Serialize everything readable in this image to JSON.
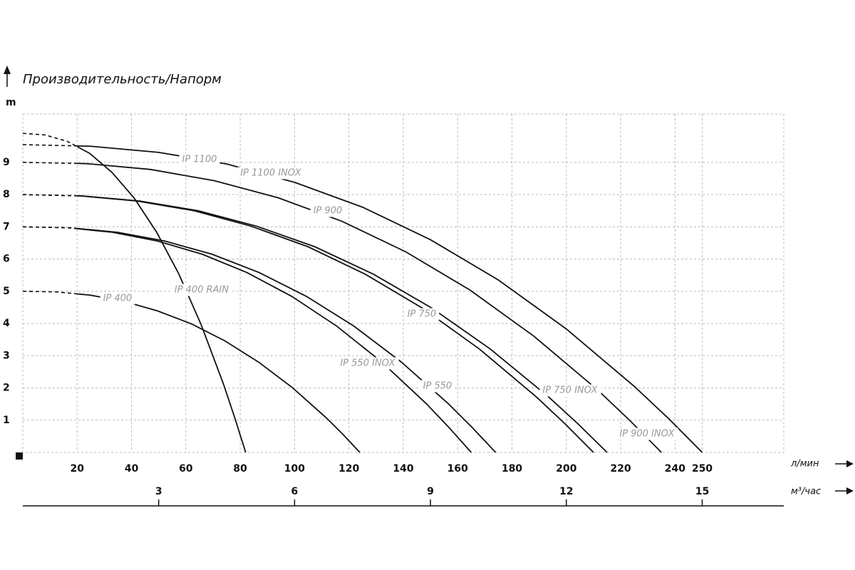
{
  "chart_data": {
    "type": "line",
    "title": "Производительность/Напорм",
    "y_label": "m",
    "x_label": "л/мин",
    "x2_label": "м³/час",
    "xlim": [
      0,
      280
    ],
    "ylim": [
      0,
      10.5
    ],
    "x2lim": [
      0,
      16.8
    ],
    "xticks": [
      20,
      40,
      60,
      80,
      100,
      120,
      140,
      160,
      180,
      200,
      220,
      240,
      250
    ],
    "yticks": [
      1,
      2,
      3,
      4,
      5,
      6,
      7,
      8,
      9
    ],
    "x2ticks": [
      3,
      6,
      9,
      12,
      15
    ],
    "grid": true,
    "dashed_below_x": 20,
    "color": "#111111",
    "series": [
      {
        "name": "IP 1100",
        "x": [
          0,
          25,
          50,
          75,
          100,
          125,
          150,
          175,
          200,
          225,
          237.5,
          250
        ],
        "values": [
          9.55,
          9.5,
          9.31,
          8.95,
          8.38,
          7.61,
          6.6,
          5.35,
          3.83,
          2.05,
          1.06,
          0
        ]
      },
      {
        "name": "IP 1100 INOX",
        "x": [
          0,
          23.5,
          47,
          70.5,
          94,
          117.5,
          141,
          164.5,
          188,
          211.5,
          223.25,
          235
        ],
        "values": [
          9.0,
          8.96,
          8.78,
          8.43,
          7.9,
          7.17,
          6.22,
          5.04,
          3.61,
          1.94,
          1.0,
          0
        ]
      },
      {
        "name": "IP 750",
        "x": [
          0,
          21.5,
          43,
          64.5,
          86,
          107.5,
          129,
          150.5,
          172,
          193.5,
          204.25,
          215
        ],
        "values": [
          8.0,
          7.96,
          7.8,
          7.5,
          7.02,
          6.38,
          5.53,
          4.48,
          3.21,
          1.72,
          0.89,
          0
        ]
      },
      {
        "name": "IP 750 INOX",
        "x": [
          0,
          21,
          42,
          63,
          84,
          105,
          126,
          147,
          168,
          189,
          199.5,
          210
        ],
        "values": [
          8.0,
          7.96,
          7.8,
          7.5,
          7.02,
          6.38,
          5.53,
          4.48,
          3.21,
          1.72,
          0.89,
          0
        ]
      },
      {
        "name": "IP 550",
        "x": [
          0,
          17.4,
          34.8,
          52.2,
          69.6,
          87,
          104.4,
          121.8,
          139.2,
          156.6,
          165.3,
          174
        ],
        "values": [
          7.0,
          6.97,
          6.83,
          6.56,
          6.15,
          5.58,
          4.84,
          3.92,
          2.81,
          1.51,
          0.78,
          0
        ]
      },
      {
        "name": "IP 550 INOX",
        "x": [
          0,
          16.5,
          33,
          49.5,
          66,
          82.5,
          99,
          115.5,
          132,
          148.5,
          156.75,
          165
        ],
        "values": [
          7.0,
          6.97,
          6.83,
          6.56,
          6.15,
          5.58,
          4.84,
          3.92,
          2.81,
          1.51,
          0.78,
          0
        ]
      },
      {
        "name": "IP 400",
        "x": [
          0,
          12.4,
          24.8,
          37.2,
          49.6,
          62,
          74.4,
          86.8,
          99.2,
          111.6,
          117.8,
          124
        ],
        "values": [
          5.0,
          4.98,
          4.88,
          4.69,
          4.39,
          3.99,
          3.46,
          2.8,
          2.01,
          1.08,
          0.56,
          0
        ]
      },
      {
        "name": "IP 400 RAIN",
        "x": [
          0,
          8.2,
          16.4,
          24.6,
          32.8,
          41,
          49.2,
          57.4,
          65.6,
          73.8,
          77.9,
          82
        ],
        "values": [
          9.9,
          9.85,
          9.65,
          9.28,
          8.69,
          7.89,
          6.84,
          5.54,
          3.97,
          2.13,
          1.1,
          0
        ]
      }
    ],
    "annotations": [
      "IP 900",
      "IP 900 INOX"
    ]
  }
}
